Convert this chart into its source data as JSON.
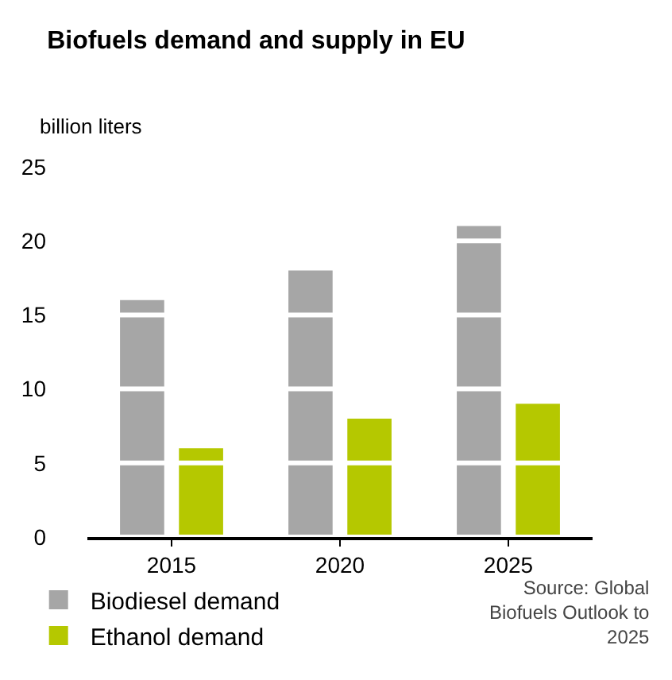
{
  "chart_data": {
    "type": "bar",
    "title": "Biofuels demand and supply in EU",
    "ylabel": "billion liters",
    "categories": [
      "2015",
      "2020",
      "2025"
    ],
    "series": [
      {
        "name": "Biodiesel demand",
        "color": "#a6a6a6",
        "values": [
          16,
          18,
          21
        ]
      },
      {
        "name": "Ethanol demand",
        "color": "#b5c800",
        "values": [
          6,
          8,
          9
        ]
      }
    ],
    "ylim": [
      0,
      25
    ],
    "yticks": [
      0,
      5,
      10,
      15,
      20,
      25
    ],
    "grid": "y",
    "legend": "bottom left",
    "annotations": [
      "Source: Global Biofuels Outlook to 2025"
    ]
  }
}
